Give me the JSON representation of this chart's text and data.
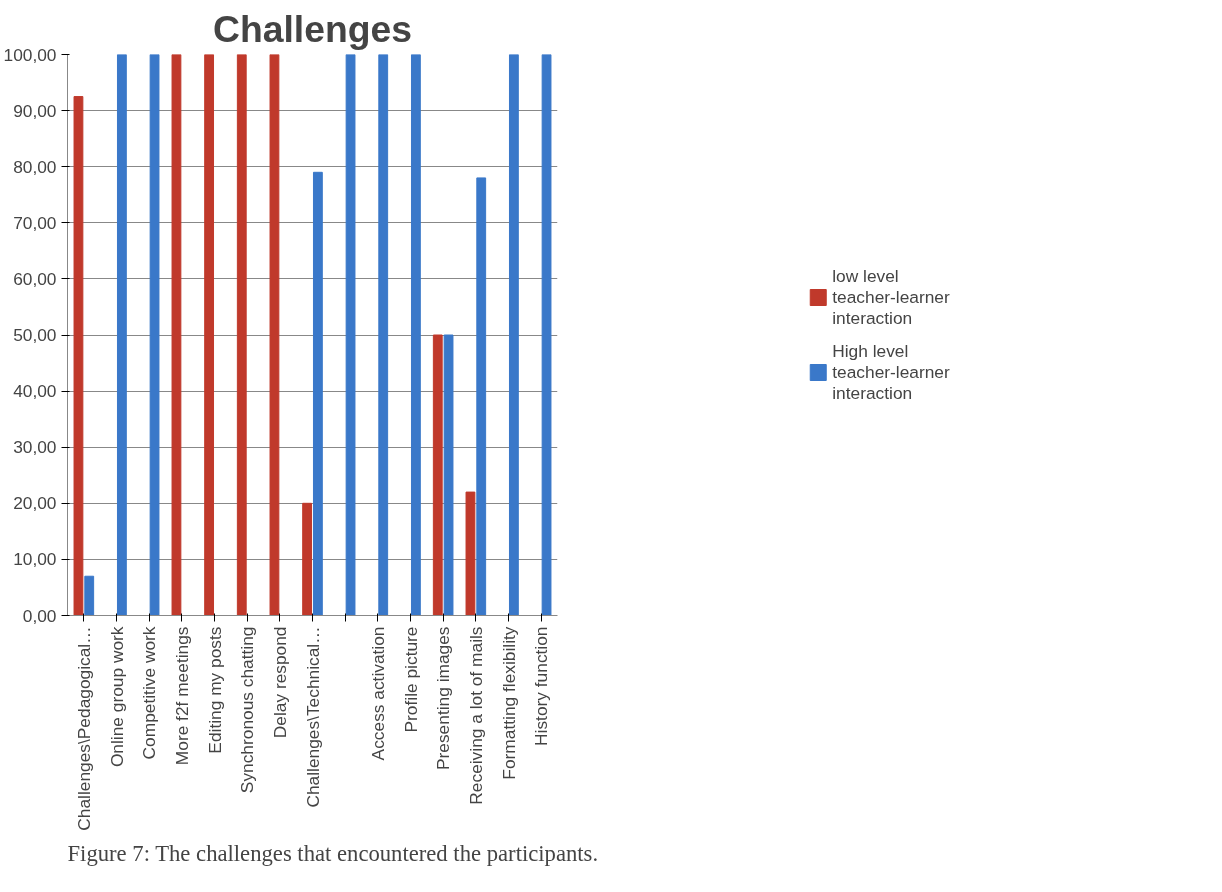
{
  "chart_data": {
    "type": "bar",
    "title": "Challenges",
    "categories": [
      "Challenges\\Pedagogical…",
      "Online group work",
      "Competitive work",
      "More f2f meetings",
      "Editing my posts",
      "Synchronous chatting",
      "Delay respond",
      "Challenges\\Technical…",
      null,
      "Access activation",
      "Profile picture",
      "Presenting images",
      "Receiving a lot of mails",
      "Formatting flexibility",
      "History function"
    ],
    "series": [
      {
        "name": "low level teacher-learner interaction",
        "color": "#c0392b",
        "values": [
          92.5,
          0,
          0,
          100,
          100,
          100,
          100,
          20,
          0,
          0,
          0,
          50,
          22,
          0,
          0
        ]
      },
      {
        "name": "High level teacher-learner interaction",
        "color": "#3a78c9",
        "values": [
          7,
          100,
          100,
          0,
          0,
          0,
          0,
          79,
          100,
          100,
          100,
          50,
          78,
          100,
          100
        ]
      }
    ],
    "ylim": [
      0,
      100
    ],
    "yticks": [
      {
        "value": 0,
        "label": "0,00"
      },
      {
        "value": 10,
        "label": "10,00"
      },
      {
        "value": 20,
        "label": "20,00"
      },
      {
        "value": 30,
        "label": "30,00"
      },
      {
        "value": 40,
        "label": "40,00"
      },
      {
        "value": 50,
        "label": "50,00"
      },
      {
        "value": 60,
        "label": "60,00"
      },
      {
        "value": 70,
        "label": "70,00"
      },
      {
        "value": 80,
        "label": "80,00"
      },
      {
        "value": 90,
        "label": "90,00"
      },
      {
        "value": 100,
        "label": "100,00"
      }
    ],
    "grid": "y",
    "legend": "right",
    "annotations": [
      "Figure 7: The challenges that encountered the participants."
    ]
  }
}
